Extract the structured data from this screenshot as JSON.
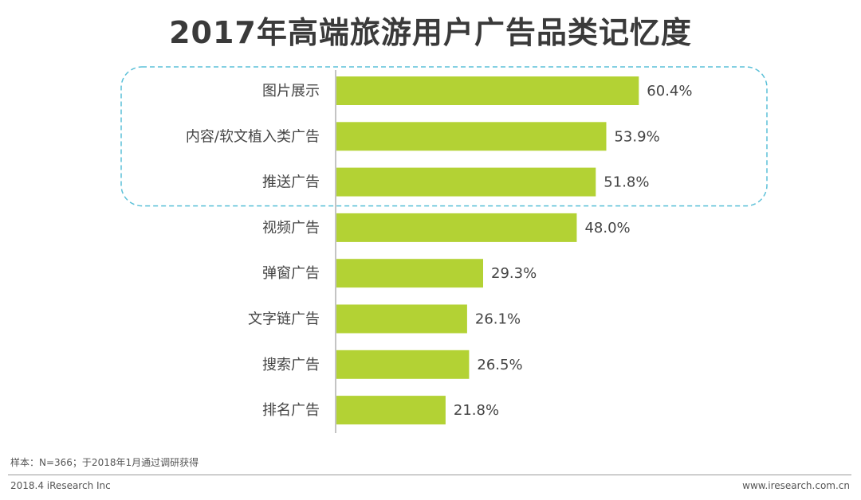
{
  "title": "2017年高端旅游用户广告品类记忆度",
  "colors": {
    "bar": "#b3d234",
    "axis": "#b0b0b0",
    "highlight_box": "#5bc0d8",
    "text": "#444444"
  },
  "chart_data": {
    "type": "bar",
    "orientation": "horizontal",
    "title": "2017年高端旅游用户广告品类记忆度",
    "categories": [
      "图片展示",
      "内容/软文植入类广告",
      "推送广告",
      "视频广告",
      "弹窗广告",
      "文字链广告",
      "搜索广告",
      "排名广告"
    ],
    "values": [
      60.4,
      53.9,
      51.8,
      48.0,
      29.3,
      26.1,
      26.5,
      21.8
    ],
    "value_labels": [
      "60.4%",
      "53.9%",
      "51.8%",
      "48.0%",
      "29.3%",
      "26.1%",
      "26.5%",
      "21.8%"
    ],
    "unit": "%",
    "xlim": [
      0,
      100
    ],
    "grid": false,
    "legend": "none",
    "highlighted_categories": [
      "图片展示",
      "内容/软文植入类广告",
      "推送广告"
    ]
  },
  "footnote": "样本：N=366；于2018年1月通过调研获得",
  "footer": {
    "left": "2018.4 iResearch Inc",
    "right": "www.iresearch.com.cn"
  }
}
